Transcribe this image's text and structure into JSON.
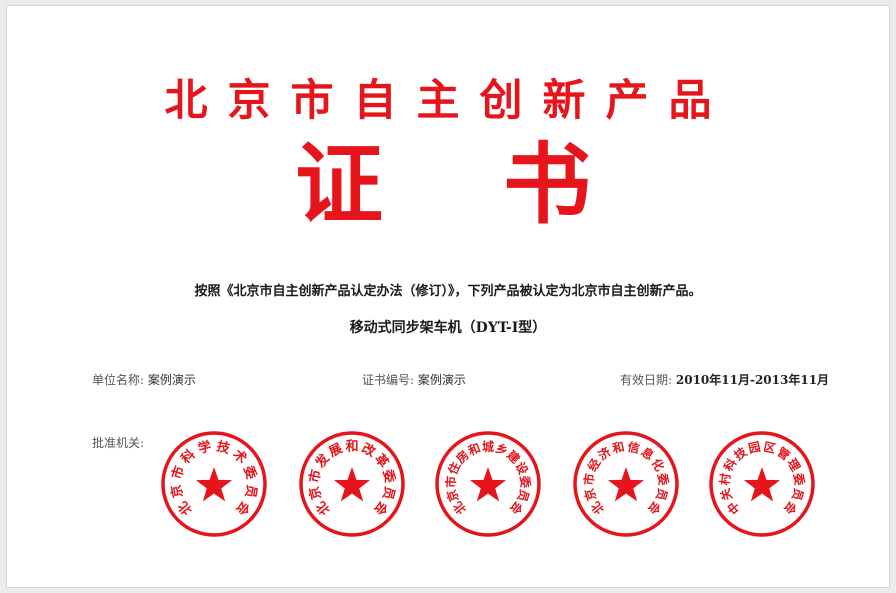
{
  "certificate": {
    "title": "北京市自主创新产品",
    "subtitle": "证书",
    "statement": "按照《北京市自主创新产品认定办法（修订）》，下列产品被认定为北京市自主创新产品。",
    "product_name": "移动式同步架车机（DYT-I型）",
    "unit_label": "单位名称:",
    "unit_value": "案例演示",
    "code_label": "证书编号:",
    "code_value": "案例演示",
    "validity_label": "有效日期:",
    "validity_value": "2010年11月-2013年11月",
    "approval_label": "批准机关:"
  },
  "seals": [
    {
      "text": "北京市科学技术委员会",
      "icon": "star-icon"
    },
    {
      "text": "北京市发展和改革委员会",
      "icon": "star-icon"
    },
    {
      "text": "北京市住房和城乡建设委员会",
      "icon": "star-icon"
    },
    {
      "text": "北京市经济和信息化委员会",
      "icon": "star-icon"
    },
    {
      "text": "中关村科技园区管理委员会",
      "icon": "star-icon"
    }
  ],
  "colors": {
    "seal_red": "#e6141b",
    "text_dark": "#1a1a1a"
  }
}
